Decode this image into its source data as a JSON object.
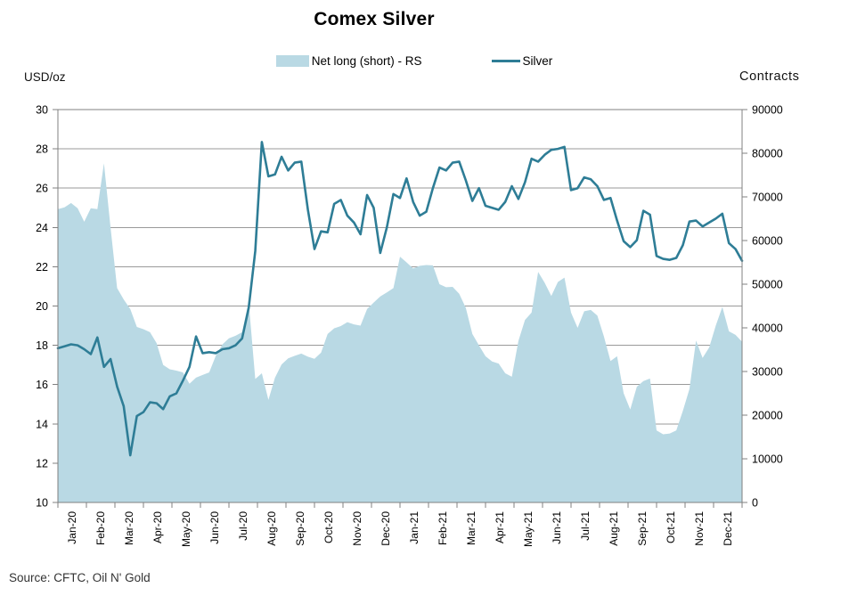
{
  "title": "Comex Silver",
  "legend": {
    "area_label": "Net long (short) - RS",
    "line_label": "Silver"
  },
  "left_axis_title": "USD/oz",
  "right_axis_title": "Contracts",
  "source": "Source: CFTC, Oil N' Gold",
  "colors": {
    "area_fill": "#b9d9e4",
    "line_stroke": "#2e7d96",
    "gridline": "#9a9a9a",
    "axis": "#808080",
    "tick_text": "#000000"
  },
  "chart_data": {
    "type": "area+line combo (weekly data)",
    "title": "Comex Silver",
    "xlabel": "",
    "x_tick_labels": [
      "Jan-20",
      "Feb-20",
      "Mar-20",
      "Apr-20",
      "May-20",
      "Jun-20",
      "Jul-20",
      "Aug-20",
      "Sep-20",
      "Oct-20",
      "Nov-20",
      "Dec-20",
      "Jan-21",
      "Feb-21",
      "Mar-21",
      "Apr-21",
      "May-21",
      "Jun-21",
      "Jul-21",
      "Aug-21",
      "Sep-21",
      "Oct-21",
      "Nov-21",
      "Dec-21"
    ],
    "left_axis": {
      "label": "USD/oz",
      "min": 10,
      "max": 30,
      "step": 2,
      "ticks": [
        30,
        28,
        26,
        24,
        22,
        20,
        18,
        16,
        14,
        12,
        10
      ]
    },
    "right_axis": {
      "label": "Contracts",
      "min": 0,
      "max": 90000,
      "step": 10000,
      "ticks": [
        90000,
        80000,
        70000,
        60000,
        50000,
        40000,
        30000,
        20000,
        10000,
        0
      ]
    },
    "grid": "horizontal only",
    "legend_position": "top center",
    "series": [
      {
        "name": "Net long (short) - RS",
        "type": "area",
        "axis": "right",
        "units": "contracts",
        "values": [
          67200,
          67600,
          68600,
          67400,
          64300,
          67400,
          67200,
          77700,
          63000,
          49100,
          46500,
          44300,
          40200,
          39700,
          39000,
          36500,
          31500,
          30500,
          30200,
          29800,
          27200,
          28600,
          29200,
          29800,
          33600,
          36200,
          37600,
          38200,
          39000,
          46000,
          28300,
          29600,
          23500,
          28600,
          31600,
          33000,
          33600,
          34100,
          33400,
          32900,
          34300,
          38600,
          39900,
          40400,
          41300,
          40800,
          40500,
          44300,
          45800,
          47200,
          48100,
          49100,
          56300,
          55000,
          53600,
          54200,
          54400,
          54300,
          50000,
          49300,
          49400,
          47800,
          44600,
          38600,
          36000,
          33500,
          32300,
          31800,
          29600,
          28800,
          37000,
          41800,
          43500,
          52800,
          50300,
          47300,
          50500,
          51500,
          43500,
          40000,
          43800,
          44100,
          42800,
          38000,
          32400,
          33500,
          25000,
          21300,
          26500,
          27800,
          28400,
          16500,
          15600,
          15800,
          16500,
          21000,
          26000,
          37100,
          33100,
          35500,
          40500,
          44800,
          39200,
          38400,
          36800
        ]
      },
      {
        "name": "Silver",
        "type": "line",
        "axis": "left",
        "units": "USD/oz",
        "values": [
          17.85,
          17.95,
          18.05,
          18.0,
          17.8,
          17.55,
          18.4,
          16.9,
          17.3,
          15.9,
          14.9,
          12.4,
          14.4,
          14.6,
          15.1,
          15.05,
          14.75,
          15.4,
          15.55,
          16.2,
          16.9,
          18.45,
          17.6,
          17.65,
          17.6,
          17.8,
          17.85,
          18.0,
          18.35,
          19.9,
          22.8,
          28.35,
          26.6,
          26.7,
          27.6,
          26.9,
          27.3,
          27.35,
          24.9,
          22.9,
          23.8,
          23.75,
          25.2,
          25.4,
          24.6,
          24.25,
          23.65,
          25.65,
          25.0,
          22.7,
          24.0,
          25.7,
          25.5,
          26.5,
          25.3,
          24.6,
          24.8,
          26.0,
          27.05,
          26.9,
          27.3,
          27.35,
          26.4,
          25.35,
          26.0,
          25.1,
          25.0,
          24.9,
          25.3,
          26.1,
          25.45,
          26.3,
          27.5,
          27.35,
          27.7,
          27.95,
          28.0,
          28.1,
          25.9,
          26.0,
          26.55,
          26.45,
          26.1,
          25.4,
          25.5,
          24.35,
          23.3,
          23.0,
          23.35,
          24.85,
          24.65,
          22.55,
          22.4,
          22.35,
          22.45,
          23.1,
          24.3,
          24.35,
          24.05,
          24.25,
          24.45,
          24.7,
          23.2,
          22.9,
          22.3
        ]
      }
    ],
    "source": "Source: CFTC, Oil N' Gold"
  }
}
